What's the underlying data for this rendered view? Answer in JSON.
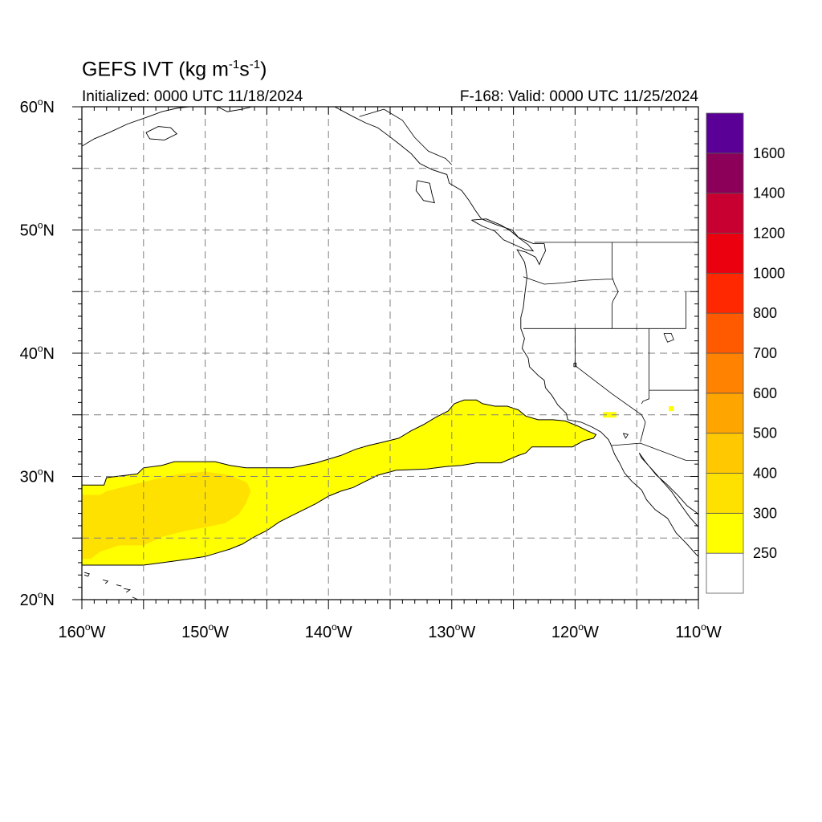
{
  "header": {
    "title_main": "GEFS IVT (kg m",
    "title_exp1": "-1",
    "title_mid": "s",
    "title_exp2": "-1",
    "title_end": ")",
    "initialized": "Initialized: 0000 UTC 11/18/2024",
    "valid": "F-168: Valid: 0000 UTC 11/25/2024"
  },
  "map": {
    "lon_range": [
      -160,
      -110
    ],
    "lat_range": [
      20,
      60
    ],
    "lon_ticks": [
      {
        "value": -160,
        "label": "160"
      },
      {
        "value": -150,
        "label": "150"
      },
      {
        "value": -140,
        "label": "140"
      },
      {
        "value": -130,
        "label": "130"
      },
      {
        "value": -120,
        "label": "120"
      },
      {
        "value": -110,
        "label": "110"
      }
    ],
    "lat_ticks": [
      {
        "value": 20,
        "label": "20"
      },
      {
        "value": 30,
        "label": "30"
      },
      {
        "value": 40,
        "label": "40"
      },
      {
        "value": 50,
        "label": "50"
      },
      {
        "value": 60,
        "label": "60"
      }
    ],
    "lon_suffix": "W",
    "lat_suffix": "N",
    "degree_sign": "o",
    "grid": true,
    "gridline_color": "#808080"
  },
  "colorbar": {
    "bins": [
      {
        "label": "",
        "color": "#ffffff"
      },
      {
        "label": "250",
        "color": "#ffff00"
      },
      {
        "label": "300",
        "color": "#ffe100"
      },
      {
        "label": "400",
        "color": "#ffc800"
      },
      {
        "label": "500",
        "color": "#ffa500"
      },
      {
        "label": "600",
        "color": "#ff8200"
      },
      {
        "label": "700",
        "color": "#ff5a00"
      },
      {
        "label": "800",
        "color": "#ff2800"
      },
      {
        "label": "1000",
        "color": "#eb0010"
      },
      {
        "label": "1200",
        "color": "#c80032"
      },
      {
        "label": "1400",
        "color": "#8c005a"
      },
      {
        "label": "1600",
        "color": "#5a0096"
      }
    ]
  },
  "ivt_regions": [
    {
      "category": "250",
      "color": "#ffff00",
      "polygon": [
        [
          -160,
          29.3
        ],
        [
          -158.2,
          29.3
        ],
        [
          -158,
          29.9
        ],
        [
          -155.5,
          30.2
        ],
        [
          -155,
          30.7
        ],
        [
          -153.5,
          30.9
        ],
        [
          -152.5,
          31.2
        ],
        [
          -149.2,
          31.2
        ],
        [
          -148,
          30.9
        ],
        [
          -146.7,
          30.7
        ],
        [
          -145,
          30.7
        ],
        [
          -143,
          30.7
        ],
        [
          -141,
          31.1
        ],
        [
          -139,
          31.7
        ],
        [
          -137.8,
          32.2
        ],
        [
          -136.8,
          32.5
        ],
        [
          -135.5,
          32.8
        ],
        [
          -134.3,
          33.1
        ],
        [
          -133.3,
          33.7
        ],
        [
          -132.3,
          34.2
        ],
        [
          -131.3,
          34.8
        ],
        [
          -130.3,
          35.3
        ],
        [
          -129.8,
          35.9
        ],
        [
          -129,
          36.2
        ],
        [
          -128,
          36.2
        ],
        [
          -127.5,
          35.9
        ],
        [
          -126.5,
          35.7
        ],
        [
          -125.5,
          35.7
        ],
        [
          -124.6,
          35.4
        ],
        [
          -124,
          34.9
        ],
        [
          -123,
          34.6
        ],
        [
          -121.8,
          34.6
        ],
        [
          -120.8,
          34.5
        ],
        [
          -119.8,
          34.1
        ],
        [
          -119,
          33.7
        ],
        [
          -118.3,
          33.4
        ],
        [
          -118.5,
          33.1
        ],
        [
          -119.3,
          32.9
        ],
        [
          -120.2,
          32.4
        ],
        [
          -122,
          32.4
        ],
        [
          -123.5,
          32.4
        ],
        [
          -124,
          31.9
        ],
        [
          -124.6,
          31.7
        ],
        [
          -125.3,
          31.4
        ],
        [
          -126,
          31.1
        ],
        [
          -127,
          31.1
        ],
        [
          -128,
          31.1
        ],
        [
          -129.2,
          30.9
        ],
        [
          -130.5,
          30.8
        ],
        [
          -132,
          30.6
        ],
        [
          -134.5,
          30.5
        ],
        [
          -136,
          30.1
        ],
        [
          -137,
          29.6
        ],
        [
          -138,
          29.1
        ],
        [
          -139,
          28.8
        ],
        [
          -140,
          28.4
        ],
        [
          -141,
          27.8
        ],
        [
          -142,
          27.3
        ],
        [
          -143,
          26.8
        ],
        [
          -144,
          26.3
        ],
        [
          -145,
          25.6
        ],
        [
          -146,
          25.1
        ],
        [
          -147,
          24.5
        ],
        [
          -148,
          24.1
        ],
        [
          -149,
          23.8
        ],
        [
          -150,
          23.5
        ],
        [
          -152,
          23.2
        ],
        [
          -153.5,
          23
        ],
        [
          -155,
          22.8
        ],
        [
          -157,
          22.8
        ],
        [
          -160,
          22.8
        ]
      ]
    },
    {
      "category": "300",
      "color": "#ffe100",
      "polygon": [
        [
          -160,
          28.5
        ],
        [
          -158.5,
          28.5
        ],
        [
          -158,
          28.8
        ],
        [
          -156,
          29.3
        ],
        [
          -154,
          29.8
        ],
        [
          -152,
          30.2
        ],
        [
          -150,
          30.4
        ],
        [
          -148,
          30.1
        ],
        [
          -146.6,
          29.5
        ],
        [
          -146.3,
          28.8
        ],
        [
          -146.7,
          27.8
        ],
        [
          -147.3,
          26.9
        ],
        [
          -148.4,
          26.2
        ],
        [
          -149.8,
          25.9
        ],
        [
          -151.5,
          25.6
        ],
        [
          -153.5,
          25.1
        ],
        [
          -155,
          24.4
        ],
        [
          -157,
          24.4
        ],
        [
          -158.5,
          23.9
        ],
        [
          -159.3,
          23.3
        ],
        [
          -160,
          23.3
        ]
      ]
    }
  ],
  "coastline": [
    [
      [
        -160,
        56.8
      ],
      [
        -159,
        57.4
      ],
      [
        -157.8,
        57.9
      ],
      [
        -156.3,
        58.6
      ],
      [
        -154.6,
        59.2
      ],
      [
        -153.5,
        59.6
      ],
      [
        -152.2,
        59.9
      ],
      [
        -151.3,
        60
      ]
    ],
    [
      [
        -154.8,
        57.9
      ],
      [
        -153.8,
        58.4
      ],
      [
        -152.8,
        58.3
      ],
      [
        -152.3,
        57.8
      ],
      [
        -153.3,
        57.3
      ],
      [
        -154.5,
        57.4
      ],
      [
        -154.8,
        57.9
      ]
    ],
    [
      [
        -149,
        60
      ],
      [
        -148.2,
        59.6
      ],
      [
        -147,
        59.8
      ],
      [
        -146.2,
        60
      ]
    ],
    [
      [
        -139.5,
        60
      ],
      [
        -138,
        59.2
      ],
      [
        -137,
        58.7
      ],
      [
        -136,
        58.3
      ],
      [
        -135.2,
        57.7
      ],
      [
        -134.3,
        57
      ],
      [
        -133.3,
        56.2
      ],
      [
        -132.6,
        55.4
      ],
      [
        -131.6,
        54.9
      ],
      [
        -130.4,
        54.5
      ],
      [
        -130.2,
        53.8
      ],
      [
        -129.2,
        53.2
      ],
      [
        -128.6,
        52.4
      ],
      [
        -128.1,
        51.6
      ],
      [
        -127.6,
        50.9
      ],
      [
        -126.3,
        50.4
      ],
      [
        -125.1,
        50
      ],
      [
        -124.6,
        49.4
      ],
      [
        -123.4,
        48.9
      ],
      [
        -122.5,
        48.9
      ]
    ],
    [
      [
        -132.8,
        54
      ],
      [
        -131.8,
        53.8
      ],
      [
        -131.6,
        52.9
      ],
      [
        -131.4,
        52.2
      ],
      [
        -132.3,
        52.4
      ],
      [
        -132.9,
        53.2
      ],
      [
        -132.8,
        54
      ]
    ],
    [
      [
        -128.4,
        50.8
      ],
      [
        -127.5,
        50.3
      ],
      [
        -126.5,
        49.9
      ],
      [
        -125.8,
        49.2
      ],
      [
        -124.9,
        48.8
      ],
      [
        -124,
        48.4
      ],
      [
        -123.4,
        48.3
      ],
      [
        -123.8,
        48.8
      ],
      [
        -124.5,
        49.3
      ],
      [
        -125.2,
        49.9
      ],
      [
        -126,
        50.4
      ],
      [
        -127.2,
        50.9
      ],
      [
        -128.4,
        50.8
      ]
    ],
    [
      [
        -122.5,
        48.9
      ],
      [
        -122.4,
        48.3
      ],
      [
        -122.7,
        47.7
      ],
      [
        -122.9,
        47.2
      ],
      [
        -123.2,
        47.8
      ],
      [
        -124,
        48.2
      ],
      [
        -124.7,
        48.4
      ],
      [
        -124.1,
        47.4
      ],
      [
        -124,
        46.9
      ],
      [
        -123.9,
        46.2
      ],
      [
        -124,
        45.4
      ],
      [
        -124.1,
        44.6
      ],
      [
        -124.2,
        43.7
      ],
      [
        -124.4,
        42.9
      ],
      [
        -124.4,
        42
      ],
      [
        -124.1,
        41.2
      ],
      [
        -124.3,
        40.4
      ],
      [
        -123.8,
        39.6
      ],
      [
        -123.7,
        38.9
      ],
      [
        -123,
        38.2
      ],
      [
        -122.5,
        37.8
      ],
      [
        -122.4,
        37.2
      ],
      [
        -121.9,
        36.6
      ],
      [
        -121.4,
        35.8
      ],
      [
        -120.7,
        35.1
      ],
      [
        -120.6,
        34.6
      ],
      [
        -119.5,
        34.4
      ],
      [
        -118.6,
        34
      ],
      [
        -117.9,
        33.6
      ],
      [
        -117.3,
        33
      ],
      [
        -117.1,
        32.6
      ],
      [
        -116.8,
        31.8
      ],
      [
        -116.4,
        31.1
      ],
      [
        -116,
        30.3
      ],
      [
        -115.4,
        29.6
      ],
      [
        -114.6,
        28.9
      ],
      [
        -114.2,
        28.1
      ],
      [
        -113.5,
        27.3
      ],
      [
        -112.5,
        26.6
      ],
      [
        -111.8,
        25.4
      ],
      [
        -111,
        24.6
      ],
      [
        -110.2,
        23.7
      ],
      [
        -110,
        23.5
      ]
    ],
    [
      [
        -110,
        25.9
      ],
      [
        -110.7,
        26.7
      ],
      [
        -111.5,
        27.8
      ],
      [
        -112.2,
        28.8
      ],
      [
        -113,
        29.7
      ],
      [
        -113.7,
        30.5
      ],
      [
        -114.6,
        31.5
      ],
      [
        -114.8,
        31.9
      ],
      [
        -114.3,
        31.2
      ],
      [
        -113.4,
        30.1
      ],
      [
        -112.6,
        29.4
      ],
      [
        -111.6,
        28.4
      ],
      [
        -110.9,
        27.6
      ],
      [
        -110.2,
        27.1
      ],
      [
        -110,
        26.9
      ]
    ],
    [
      [
        -159.8,
        22.2
      ],
      [
        -159.4,
        22.1
      ],
      [
        -159.5,
        21.9
      ],
      [
        -159.8,
        22
      ]
    ],
    [
      [
        -158.3,
        21.6
      ],
      [
        -157.9,
        21.5
      ],
      [
        -158.1,
        21.3
      ]
    ],
    [
      [
        -157.2,
        21.2
      ],
      [
        -156.8,
        21.1
      ]
    ],
    [
      [
        -156.6,
        20.9
      ],
      [
        -156.1,
        20.8
      ],
      [
        -156.4,
        20.6
      ]
    ],
    [
      [
        -155.9,
        20.2
      ],
      [
        -155,
        19.8
      ],
      [
        -155.3,
        19.4
      ]
    ]
  ],
  "borders": [
    [
      [
        -141,
        60
      ],
      [
        -141,
        59.8
      ]
    ],
    [
      [
        -137.5,
        59.2
      ],
      [
        -135.5,
        59.8
      ],
      [
        -134,
        58.9
      ],
      [
        -133,
        57.5
      ],
      [
        -131.9,
        56.4
      ],
      [
        -130.5,
        55.8
      ],
      [
        -130,
        55.3
      ]
    ],
    [
      [
        -123.3,
        49
      ],
      [
        -110,
        49
      ]
    ],
    [
      [
        -117,
        49
      ],
      [
        -117,
        46.2
      ],
      [
        -116.8,
        45.6
      ],
      [
        -116.5,
        45
      ],
      [
        -116.9,
        44.3
      ],
      [
        -117,
        44
      ],
      [
        -117,
        42
      ]
    ],
    [
      [
        -124.2,
        46.2
      ],
      [
        -122.5,
        45.6
      ],
      [
        -121,
        45.7
      ],
      [
        -119.5,
        45.9
      ],
      [
        -117.5,
        46
      ],
      [
        -116.9,
        46
      ]
    ],
    [
      [
        -124.2,
        42
      ],
      [
        -111,
        42
      ]
    ],
    [
      [
        -120,
        42
      ],
      [
        -120,
        39
      ],
      [
        -117,
        36.7
      ],
      [
        -114.6,
        35
      ],
      [
        -114.3,
        34.4
      ],
      [
        -114.7,
        32.8
      ]
    ],
    [
      [
        -114,
        42
      ],
      [
        -114,
        36.3
      ],
      [
        -114.5,
        36.1
      ],
      [
        -114.6,
        35.9
      ]
    ],
    [
      [
        -114,
        37
      ],
      [
        -110,
        37
      ]
    ],
    [
      [
        -111,
        45
      ],
      [
        -111,
        42
      ]
    ],
    [
      [
        -117.1,
        32.5
      ],
      [
        -114.7,
        32.7
      ],
      [
        -111,
        31.3
      ],
      [
        -110,
        31.3
      ]
    ]
  ],
  "lakes": [
    [
      [
        -112.8,
        41.6
      ],
      [
        -112.2,
        41.6
      ],
      [
        -112,
        41.1
      ],
      [
        -112.5,
        40.9
      ],
      [
        -112.8,
        41.6
      ]
    ],
    [
      [
        -120.1,
        39.2
      ],
      [
        -119.9,
        39.2
      ],
      [
        -119.9,
        38.9
      ],
      [
        -120.1,
        38.9
      ],
      [
        -120.1,
        39.2
      ]
    ],
    [
      [
        -116.1,
        33.5
      ],
      [
        -115.7,
        33.4
      ],
      [
        -115.9,
        33.1
      ],
      [
        -116.1,
        33.5
      ]
    ]
  ],
  "small_blobs": [
    {
      "lon": -117.2,
      "lat": 35.0,
      "w": 1.1,
      "h": 0.45
    },
    {
      "lon": -112.2,
      "lat": 35.5,
      "w": 0.4,
      "h": 0.4
    }
  ]
}
